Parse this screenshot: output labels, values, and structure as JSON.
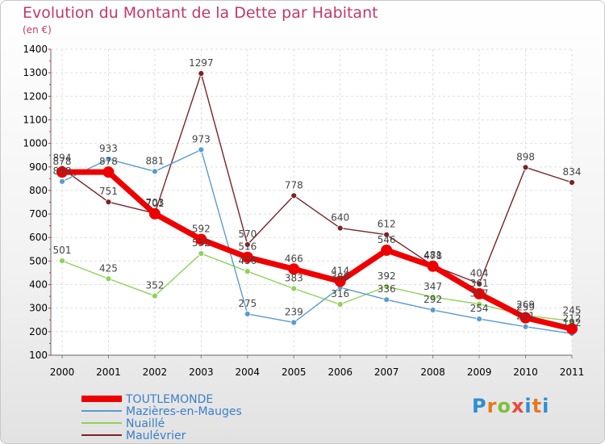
{
  "chart_data": {
    "type": "line",
    "title": "Evolution du Montant de la Dette par Habitant",
    "subtitle": "(en €)",
    "x": [
      "2000",
      "2001",
      "2002",
      "2003",
      "2004",
      "2005",
      "2006",
      "2007",
      "2008",
      "2009",
      "2010",
      "2011"
    ],
    "ylim": [
      100,
      1400
    ],
    "yticks": [
      100,
      200,
      300,
      400,
      500,
      600,
      700,
      800,
      900,
      1000,
      1100,
      1200,
      1300,
      1400
    ],
    "grid": true,
    "legend_position": "bottom-left",
    "series": [
      {
        "name": "Maulévrier",
        "color": "#7a2328",
        "values": [
          894,
          751,
          703,
          1297,
          570,
          778,
          640,
          612,
          481,
          404,
          898,
          834
        ]
      },
      {
        "name": "Nuaillé",
        "color": "#8fd15a",
        "values": [
          501,
          425,
          352,
          532,
          456,
          383,
          316,
          392,
          347,
          317,
          269,
          245
        ]
      },
      {
        "name": "Mazières-en-Mauges",
        "color": "#5a9bd0",
        "values": [
          838,
          933,
          881,
          973,
          275,
          239,
          388,
          336,
          292,
          254,
          221,
          192
        ]
      },
      {
        "name": "TOUTLEMONDE",
        "color": "#ee0000",
        "values": [
          878,
          878,
          701,
          592,
          516,
          466,
          414,
          546,
          478,
          361,
          259,
          212
        ]
      }
    ]
  },
  "brand": {
    "p": "P",
    "r": "r",
    "o": "o",
    "x": "x",
    "i": "i",
    "t": "t",
    "i2": "i"
  }
}
